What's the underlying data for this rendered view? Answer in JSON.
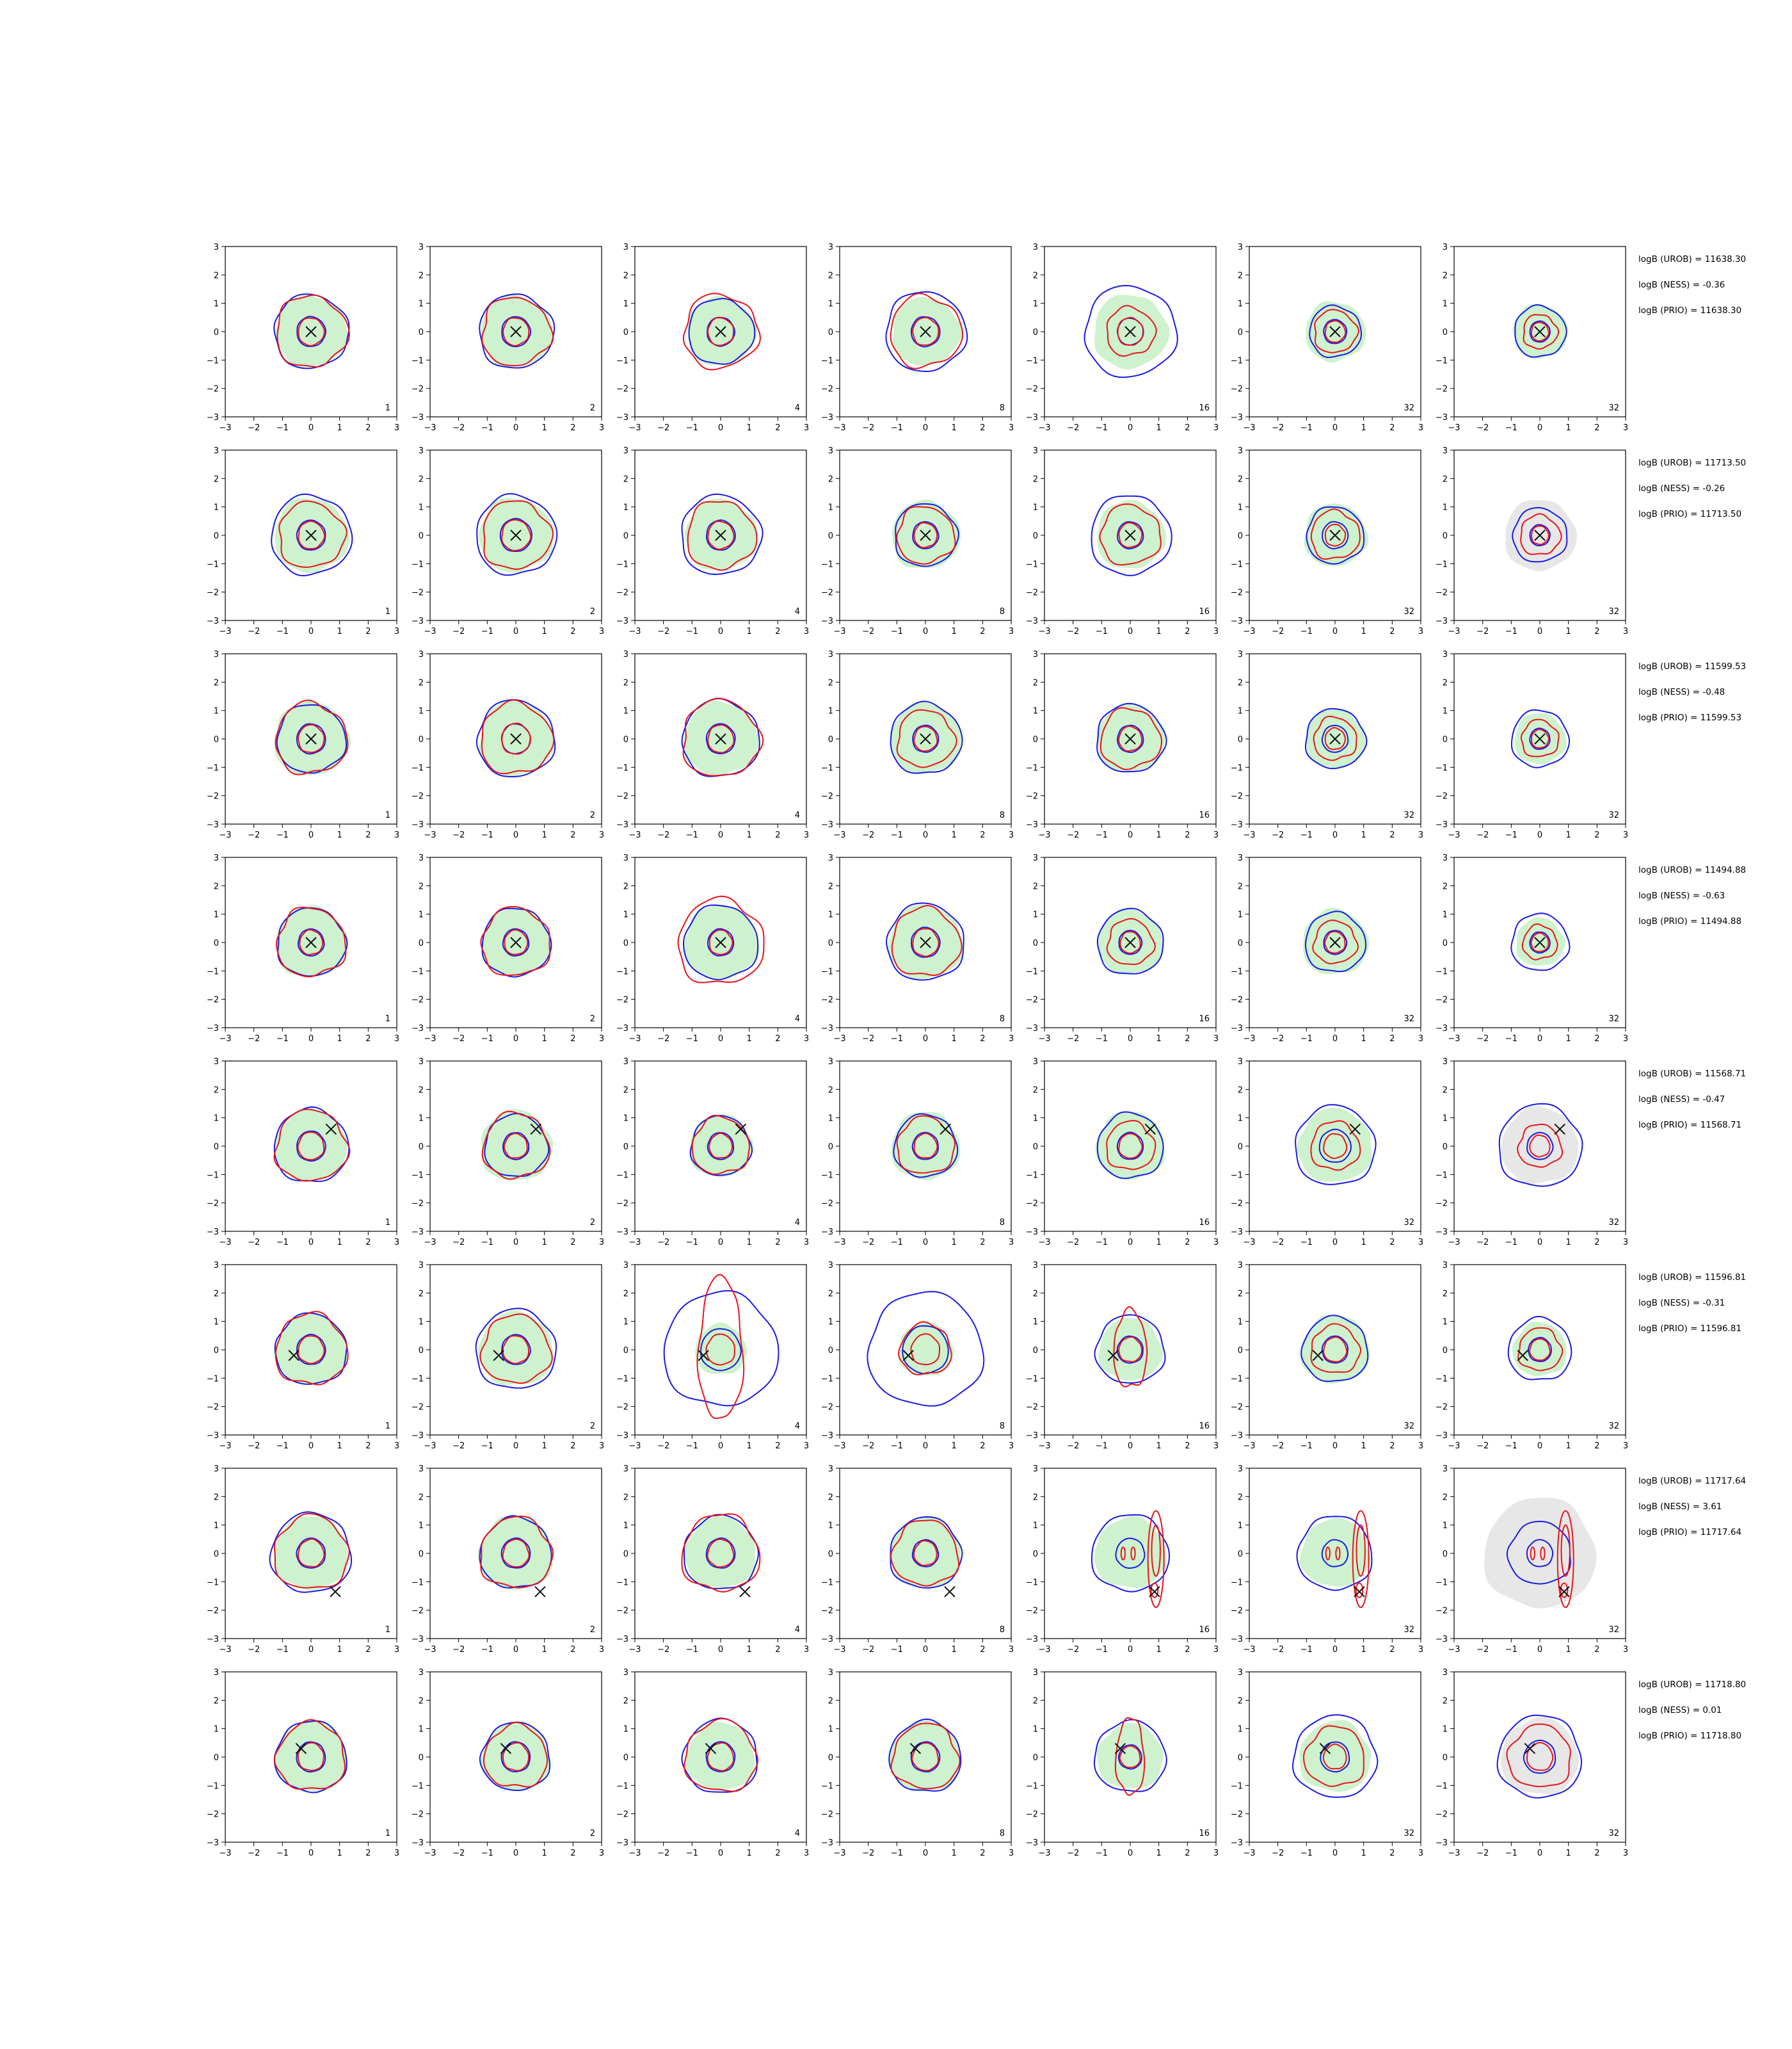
{
  "figure": {
    "colors": {
      "green_fill": "#cdf2cd",
      "gray_fill": "#e7e7e7",
      "red_contour": "#e8141b",
      "blue_contour": "#1a1ae6",
      "marker": "#111111"
    }
  },
  "chart_data": {
    "type": "contour",
    "xlim": [
      -3,
      3
    ],
    "ylim": [
      -3,
      3
    ],
    "ticks": [
      -3,
      -2,
      -1,
      0,
      1,
      2,
      3
    ],
    "tick_labels": [
      "−3",
      "−2",
      "−1",
      "0",
      "1",
      "2",
      "3"
    ],
    "grid": false,
    "column_labels": [
      "1",
      "2",
      "4",
      "8",
      "16",
      "32",
      "32"
    ],
    "rows": [
      {
        "marker": [
          0.0,
          0.0
        ],
        "annotations": [
          "logB (UROB) = 11638.30",
          "logB (NESS) = -0.36",
          "logB (PRIO) = 11638.30"
        ],
        "gray_columns": [],
        "panels": [
          {
            "green": 1.25,
            "blue_in": 0.5,
            "blue_out": 1.3,
            "red_in": 0.45,
            "red_out": 1.25
          },
          {
            "green": 1.25,
            "blue_in": 0.5,
            "blue_out": 1.3,
            "red_in": 0.45,
            "red_out": 1.2
          },
          {
            "green": 1.2,
            "blue_in": 0.48,
            "blue_out": 1.15,
            "red_in": 0.45,
            "red_out": 1.3
          },
          {
            "green": 1.2,
            "blue_in": 0.5,
            "blue_out": 1.4,
            "red_in": 0.45,
            "red_out": 1.25
          },
          {
            "green": 1.3,
            "blue_in": 0.45,
            "blue_out": 1.6,
            "red_in": 0.45,
            "red_out": 0.85
          },
          {
            "green": 1.05,
            "blue_in": 0.4,
            "blue_out": 0.9,
            "red_in": 0.35,
            "red_out": 0.75
          },
          {
            "green": 0.95,
            "blue_in": 0.35,
            "blue_out": 0.9,
            "red_in": 0.3,
            "red_out": 0.6
          }
        ]
      },
      {
        "marker": [
          0.0,
          0.0
        ],
        "annotations": [
          "logB (UROB) = 11713.50",
          "logB (NESS) = -0.26",
          "logB (PRIO) = 11713.50"
        ],
        "gray_columns": [
          6
        ],
        "panels": [
          {
            "green": 1.3,
            "blue_in": 0.5,
            "blue_out": 1.4,
            "red_in": 0.45,
            "red_out": 1.15
          },
          {
            "green": 1.3,
            "blue_in": 0.55,
            "blue_out": 1.4,
            "red_in": 0.5,
            "red_out": 1.2
          },
          {
            "green": 1.25,
            "blue_in": 0.5,
            "blue_out": 1.4,
            "red_in": 0.45,
            "red_out": 1.2
          },
          {
            "green": 1.2,
            "blue_in": 0.45,
            "blue_out": 1.1,
            "red_in": 0.4,
            "red_out": 1.0
          },
          {
            "green": 1.2,
            "blue_in": 0.45,
            "blue_out": 1.4,
            "red_in": 0.4,
            "red_out": 1.05
          },
          {
            "green": 1.1,
            "blue_in": 0.45,
            "blue_out": 1.0,
            "red_in": 0.35,
            "red_out": 0.85
          },
          {
            "green": 0.0,
            "blue_in": 0.35,
            "blue_out": 0.95,
            "red_in": 0.3,
            "red_out": 0.7,
            "gray": 1.25
          }
        ]
      },
      {
        "marker": [
          0.0,
          0.0
        ],
        "annotations": [
          "logB (UROB) = 11599.53",
          "logB (NESS) = -0.48",
          "logB (PRIO) = 11599.53"
        ],
        "gray_columns": [],
        "panels": [
          {
            "green": 1.3,
            "blue_in": 0.5,
            "blue_out": 1.2,
            "red_in": 0.45,
            "red_out": 1.25
          },
          {
            "green": 1.3,
            "blue_in": 0.5,
            "blue_out": 1.35,
            "red_in": 0.5,
            "red_out": 1.25
          },
          {
            "green": 1.3,
            "blue_in": 0.5,
            "blue_out": 1.35,
            "red_in": 0.45,
            "red_out": 1.35
          },
          {
            "green": 1.25,
            "blue_in": 0.45,
            "blue_out": 1.25,
            "red_in": 0.4,
            "red_out": 1.0
          },
          {
            "green": 1.2,
            "blue_in": 0.45,
            "blue_out": 1.2,
            "red_in": 0.4,
            "red_out": 1.05
          },
          {
            "green": 1.05,
            "blue_in": 0.45,
            "blue_out": 1.05,
            "red_in": 0.35,
            "red_out": 0.75
          },
          {
            "green": 0.9,
            "blue_in": 0.35,
            "blue_out": 1.0,
            "red_in": 0.3,
            "red_out": 0.65
          }
        ]
      },
      {
        "marker": [
          0.0,
          0.0
        ],
        "annotations": [
          "logB (UROB) = 11494.88",
          "logB (NESS) = -0.63",
          "logB (PRIO) = 11494.88"
        ],
        "gray_columns": [],
        "panels": [
          {
            "green": 1.25,
            "blue_in": 0.45,
            "blue_out": 1.2,
            "red_in": 0.4,
            "red_out": 1.2
          },
          {
            "green": 1.2,
            "blue_in": 0.45,
            "blue_out": 1.2,
            "red_in": 0.4,
            "red_out": 1.2
          },
          {
            "green": 1.3,
            "blue_in": 0.45,
            "blue_out": 1.3,
            "red_in": 0.4,
            "red_out": 1.5
          },
          {
            "green": 1.3,
            "blue_in": 0.5,
            "blue_out": 1.35,
            "red_in": 0.45,
            "red_out": 1.2
          },
          {
            "green": 1.15,
            "blue_in": 0.4,
            "blue_out": 1.15,
            "red_in": 0.35,
            "red_out": 0.8
          },
          {
            "green": 1.15,
            "blue_in": 0.4,
            "blue_out": 1.05,
            "red_in": 0.35,
            "red_out": 0.75
          },
          {
            "green": 0.85,
            "blue_in": 0.35,
            "blue_out": 1.0,
            "red_in": 0.3,
            "red_out": 0.6
          }
        ]
      },
      {
        "marker": [
          0.7,
          0.6
        ],
        "annotations": [
          "logB (UROB) = 11568.71",
          "logB (NESS) = -0.47",
          "logB (PRIO) = 11568.71"
        ],
        "gray_columns": [
          6
        ],
        "panels": [
          {
            "green": 1.25,
            "blue_in": 0.5,
            "blue_out": 1.3,
            "red_in": 0.45,
            "red_out": 1.25
          },
          {
            "green": 1.25,
            "blue_in": 0.45,
            "blue_out": 1.1,
            "red_in": 0.4,
            "red_out": 1.15
          },
          {
            "green": 1.1,
            "blue_in": 0.45,
            "blue_out": 1.05,
            "red_in": 0.4,
            "red_out": 1.0
          },
          {
            "green": 1.2,
            "blue_in": 0.45,
            "blue_out": 1.1,
            "red_in": 0.4,
            "red_out": 1.0
          },
          {
            "green": 1.2,
            "blue_in": 0.45,
            "blue_out": 1.15,
            "red_in": 0.4,
            "red_out": 0.85
          },
          {
            "green": 1.3,
            "blue_in": 0.55,
            "blue_out": 1.4,
            "red_in": 0.4,
            "red_out": 0.85
          },
          {
            "green": 0.0,
            "blue_in": 0.45,
            "blue_out": 1.45,
            "red_in": 0.35,
            "red_out": 0.75,
            "gray": 1.35
          }
        ]
      },
      {
        "marker": [
          -0.6,
          -0.2
        ],
        "annotations": [
          "logB (UROB) = 11596.81",
          "logB (NESS) = -0.31",
          "logB (PRIO) = 11596.81"
        ],
        "gray_columns": [],
        "panels": [
          {
            "green": 1.25,
            "blue_in": 0.5,
            "blue_out": 1.25,
            "red_in": 0.45,
            "red_out": 1.25
          },
          {
            "green": 1.3,
            "blue_in": 0.5,
            "blue_out": 1.4,
            "red_in": 0.45,
            "red_out": 1.2
          },
          {
            "green": 0.9,
            "blue_in": 0.7,
            "blue_out": 2.0,
            "red_in": 0.5,
            "red_out": 1.4,
            "red_elong": 1.8
          },
          {
            "green": 0.95,
            "blue_in": 0.8,
            "blue_out": 2.0,
            "red_in": 0.5,
            "red_out": 0.9
          },
          {
            "green": 1.1,
            "blue_in": 0.45,
            "blue_out": 1.2,
            "red_in": 0.4,
            "red_out": 1.05,
            "red_elong": 1.3
          },
          {
            "green": 1.2,
            "blue_in": 0.45,
            "blue_out": 1.15,
            "red_in": 0.4,
            "red_out": 0.85
          },
          {
            "green": 0.95,
            "blue_in": 0.4,
            "blue_out": 1.1,
            "red_in": 0.35,
            "red_out": 0.75
          }
        ]
      },
      {
        "marker": [
          0.85,
          -1.35
        ],
        "annotations": [
          "logB (UROB) = 11717.64",
          "logB (NESS) = 3.61",
          "logB (PRIO) = 11717.64"
        ],
        "gray_columns": [
          6
        ],
        "panels": [
          {
            "green": 1.3,
            "blue_in": 0.5,
            "blue_out": 1.4,
            "red_in": 0.45,
            "red_out": 1.3
          },
          {
            "green": 1.3,
            "blue_in": 0.5,
            "blue_out": 1.25,
            "red_in": 0.45,
            "red_out": 1.25
          },
          {
            "green": 1.25,
            "blue_in": 0.5,
            "blue_out": 1.3,
            "red_in": 0.45,
            "red_out": 1.35
          },
          {
            "green": 1.25,
            "blue_in": 0.45,
            "blue_out": 1.25,
            "red_in": 0.4,
            "red_out": 1.15
          },
          {
            "green": 1.25,
            "blue_in": 0.5,
            "blue_out": 1.35,
            "red_in": 0.0,
            "red_out": 0.0,
            "red_side": true
          },
          {
            "green": 1.2,
            "blue_in": 0.45,
            "blue_out": 1.3,
            "red_in": 0.0,
            "red_out": 0.0,
            "red_side": true
          },
          {
            "green": 0.0,
            "blue_in": 0.45,
            "blue_out": 1.1,
            "red_in": 0.0,
            "red_out": 0.0,
            "red_side": true,
            "gray": 1.95
          }
        ]
      },
      {
        "marker": [
          -0.35,
          0.3
        ],
        "annotations": [
          "logB (UROB) = 11718.80",
          "logB (NESS) = 0.01",
          "logB (PRIO) = 11718.80"
        ],
        "gray_columns": [
          6
        ],
        "panels": [
          {
            "green": 1.25,
            "blue_in": 0.5,
            "blue_out": 1.25,
            "red_in": 0.45,
            "red_out": 1.2
          },
          {
            "green": 1.2,
            "blue_in": 0.5,
            "blue_out": 1.2,
            "red_in": 0.45,
            "red_out": 1.1
          },
          {
            "green": 1.2,
            "blue_in": 0.5,
            "blue_out": 1.3,
            "red_in": 0.45,
            "red_out": 1.25
          },
          {
            "green": 1.25,
            "blue_in": 0.5,
            "blue_out": 1.25,
            "red_in": 0.45,
            "red_out": 1.15
          },
          {
            "green": 1.15,
            "blue_in": 0.4,
            "blue_out": 1.25,
            "red_in": 0.35,
            "red_out": 0.9,
            "red_elong": 1.5
          },
          {
            "green": 1.25,
            "blue_in": 0.5,
            "blue_out": 1.45,
            "red_in": 0.4,
            "red_out": 1.05
          },
          {
            "green": 0.0,
            "blue_in": 0.55,
            "blue_out": 1.45,
            "red_in": 0.45,
            "red_out": 1.1,
            "gray": 1.35
          }
        ]
      }
    ]
  }
}
